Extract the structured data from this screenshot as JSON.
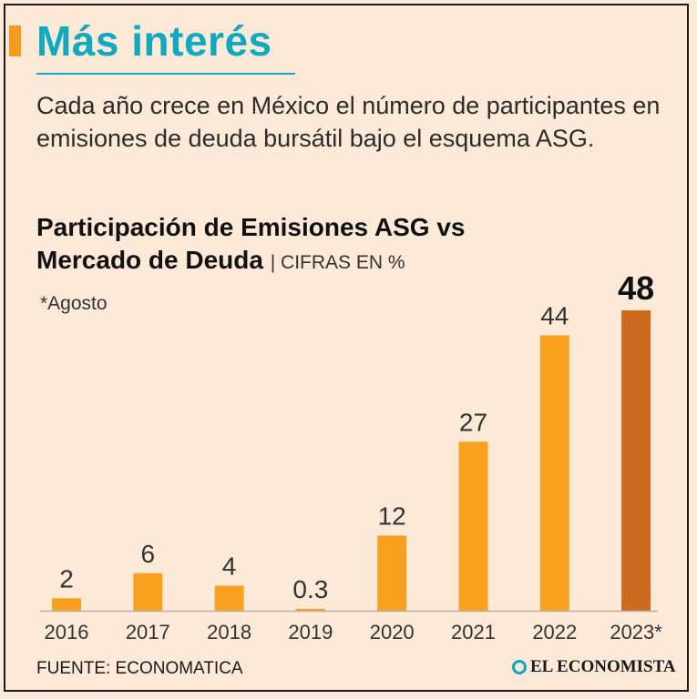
{
  "header": {
    "title": "Más interés",
    "subtitle": "Cada año crece en México el número de participantes en emisiones de deuda bursátil bajo el esquema ASG."
  },
  "chart_data": {
    "type": "bar",
    "title_line1": "Participación de Emisiones ASG vs",
    "title_line2": "Mercado de Deuda",
    "units": "| CIFRAS EN %",
    "note": "*Agosto",
    "categories": [
      "2016",
      "2017",
      "2018",
      "2019",
      "2020",
      "2021",
      "2022",
      "2023*"
    ],
    "values": [
      2,
      6,
      4,
      0.3,
      12,
      27,
      44,
      48
    ],
    "value_labels": [
      "2",
      "6",
      "4",
      "0.3",
      "12",
      "27",
      "44",
      "48"
    ],
    "highlight_index": 7,
    "ylim": [
      0,
      48
    ],
    "colors": {
      "bar": "#f7a11e",
      "highlight": "#cc6a1e",
      "baseline": "#b8b0a8"
    }
  },
  "footer": {
    "source": "FUENTE: ECONOMATICA",
    "brand": "EL ECONOMISTA"
  }
}
